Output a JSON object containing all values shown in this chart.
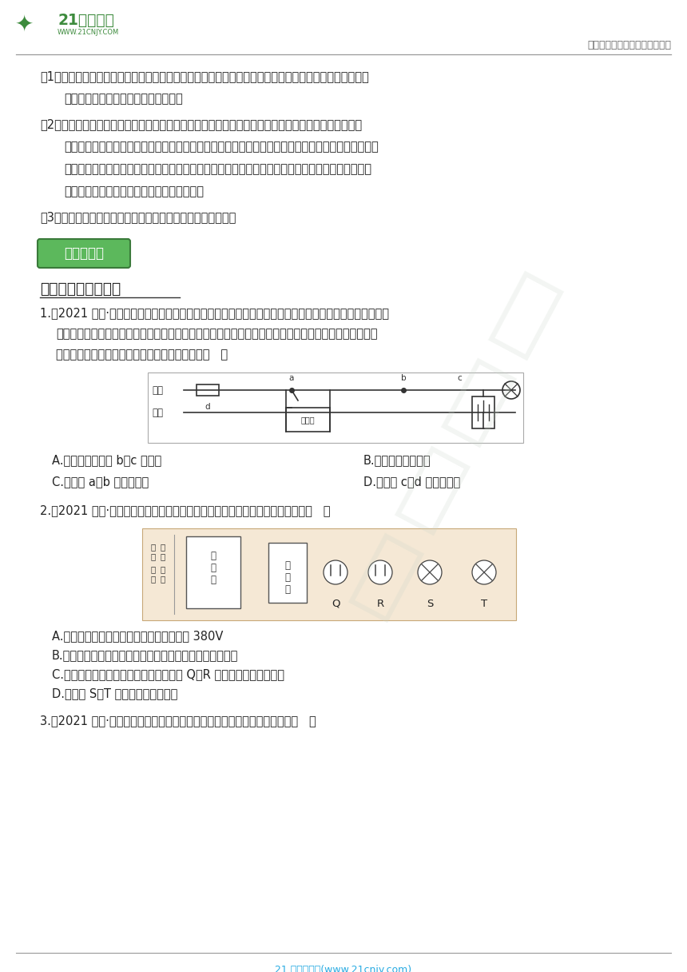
{
  "bg": "#ffffff",
  "header_line_color": "#999999",
  "footer_line_color": "#999999",
  "logo_green": "#3d8b3d",
  "logo_dark_green": "#2d6a2d",
  "header_right_text": "中小学教育资源及组卷应用平台",
  "header_right_color": "#666666",
  "footer_text": "21 世纪教育网(www.21cnjy.com)",
  "footer_color": "#29abe2",
  "text_color": "#222222",
  "section_box_bg": "#5cb85c",
  "section_box_border": "#3a7a3a",
  "section_box_text_color": "#ffffff",
  "section_box_label": "知识点精炼",
  "section1_title": "一、家庭电路的组成",
  "watermark_color": "#c8d5c8",
  "p1a": "（1）在电路中作用：断路器上标有额定电流，当流过断路器的电流超过额定电流时，断路器会自动断开，",
  "p1b": "切断电路，从而起到保护电路的作用。",
  "p2a": "（2）断路器的工作原理：当电路过载或短路时，电流过大，导体发热断路器中双金属片受热弯曲推动簧",
  "p2b": "锁，弹簧拉动，触点断开断开电路没有电流在过载短路时保护作用。当电路被熔断器或断路器切断后，",
  "p2c": "不要急于更换保险丝或使断路器复位，而应先找出发生电路故障的原因，排除故障后再接通电路。正",
  "p2d": "常时双金属片恢复原状，断路器能手动复位。",
  "p3": "（3）断路器应安装在火线上。漏电保护器也是断路器的一种。",
  "q1_line1": "1.（2021 八下·新昌期末）如图是小明家的部分电路，他将电饭煲的插头插入三孔插座后，正在发光的电灯",
  "q1_line2": "突然熄灭，但电视机仍正常发光，拔出电饭煲的插头，电灯仍不能工作，用测电笔分别去测试插座的左、",
  "q1_line3": "右孔，氖管不发光。若电路中只有一处故障，则（   ）",
  "q1A": "A.电灯所在电路的 b、c 间断路",
  "q1B": "B.插座的接地线断路",
  "q1C": "C.电路的 a、b 间导线断路",
  "q1D": "D.电路的 c、d 导线间断路",
  "q2_line1": "2.（2021 八下·上城期末）如图表示家庭电路的一部分，下列相关说法正确的是（   ）",
  "q2A": "A.家庭电路火线与零线之间的电压正常值为 380V",
  "q2B": "B.断路器在电路中的电流过大时，自动切断电路起保护作用",
  "q2C": "C.正常情况下用测电笔在三孔式插座插孔 Q、R 检测时，氖管都会发光",
  "q2D": "D.用电器 S、T 采用串联的方式连接",
  "q3_line1": "3.（2021 八下·滨江期末）如图是某家庭电路的一部分，下列说法正确的是（   ）"
}
